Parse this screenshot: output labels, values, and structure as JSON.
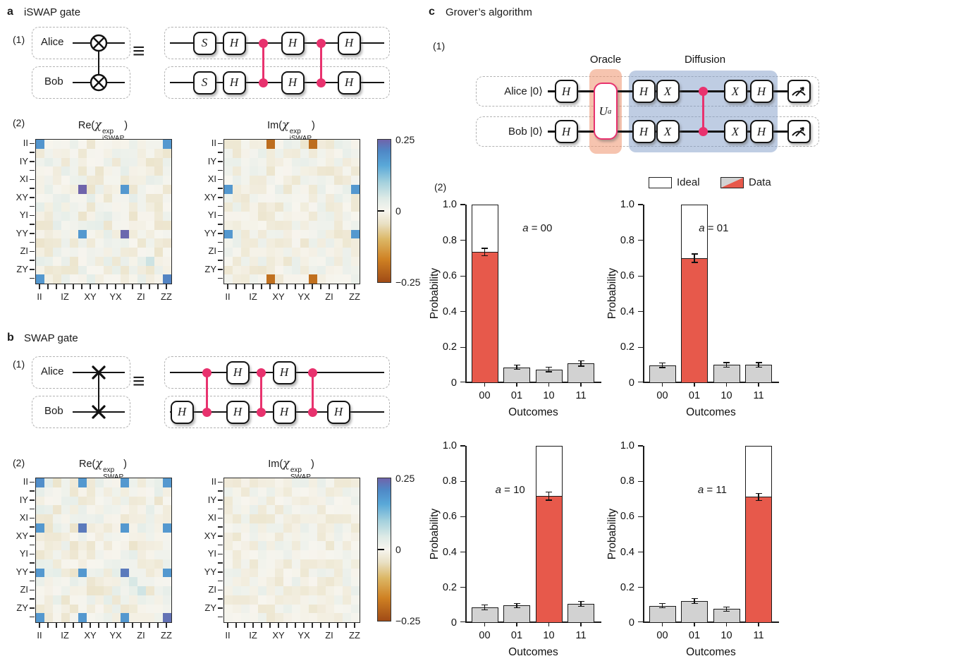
{
  "palette": {
    "pink": "#e8326e",
    "red_bar": "#e7594b",
    "gray_bar": "#d2d2d2",
    "ideal_fill": "#ffffff",
    "oracle_fill": "rgba(238,148,110,0.55)",
    "diffusion_fill": "rgba(128,155,200,0.5)",
    "axis": "#1a1a1a"
  },
  "panel_a": {
    "letter": "a",
    "title": "iSWAP gate",
    "sub1": "(1)",
    "sub2": "(2)",
    "alice": "Alice",
    "bob": "Bob",
    "equiv": "≡",
    "left_symbol": "cross-circle",
    "right_circuit": {
      "top": [
        "S",
        "H",
        "dot",
        "H",
        "dot",
        "H"
      ],
      "bottom": [
        "S",
        "H",
        "dot",
        "H",
        "dot",
        "H"
      ]
    }
  },
  "panel_b": {
    "letter": "b",
    "title": "SWAP gate",
    "sub1": "(1)",
    "sub2": "(2)",
    "alice": "Alice",
    "bob": "Bob",
    "equiv": "≡",
    "left_symbol": "cross",
    "right_circuit": {
      "top": [
        "",
        "dot",
        "H",
        "dot",
        "H",
        "dot",
        ""
      ],
      "bottom": [
        "H",
        "dot",
        "H",
        "dot",
        "H",
        "dot",
        "H"
      ]
    }
  },
  "panel_c": {
    "letter": "c",
    "title": "Grover’s algorithm",
    "sub1": "(1)",
    "sub2": "(2)",
    "alice": "Alice",
    "bob": "Bob",
    "ket": "|0⟩",
    "oracle_label": "Oracle",
    "diffusion_label": "Diffusion",
    "gate_before": "H",
    "oracle_gate": {
      "letter": "U",
      "sub": "a"
    },
    "gates_after": [
      "H",
      "X",
      "dot",
      "X",
      "H"
    ],
    "measure": "meter-icon"
  },
  "colorbar": {
    "label_max": "0.25",
    "label_mid": "0",
    "label_min": "−0.25",
    "stops": [
      {
        "v": -0.25,
        "c": "#a04b16"
      },
      {
        "v": -0.17,
        "c": "#cf8123"
      },
      {
        "v": -0.1,
        "c": "#dcb765"
      },
      {
        "v": -0.045,
        "c": "#e9e0c4"
      },
      {
        "v": 0.0,
        "c": "#f7f5ee"
      },
      {
        "v": 0.045,
        "c": "#ddeae6"
      },
      {
        "v": 0.1,
        "c": "#a5d1dd"
      },
      {
        "v": 0.16,
        "c": "#59a8d8"
      },
      {
        "v": 0.21,
        "c": "#4f88c6"
      },
      {
        "v": 0.25,
        "c": "#6f64ab"
      }
    ]
  },
  "chart_data": [
    {
      "type": "heatmap",
      "id": "iswap_re",
      "title": {
        "func": "Re(",
        "chi": "χ",
        "sup": "exp",
        "sub": "iSWAP",
        "close": ")"
      },
      "rows": 16,
      "cols": 16,
      "scale": [
        -0.25,
        0.25
      ],
      "ytick_labels": [
        "II",
        "IY",
        "XI",
        "XY",
        "YI",
        "YY",
        "ZI",
        "ZY"
      ],
      "xtick_labels": [
        "II",
        "IZ",
        "XY",
        "YX",
        "ZI",
        "ZZ"
      ],
      "strong_cells": [
        [
          0,
          0,
          0.19
        ],
        [
          0,
          15,
          0.185
        ],
        [
          15,
          0,
          0.185
        ],
        [
          15,
          15,
          0.215
        ],
        [
          5,
          5,
          0.25
        ],
        [
          5,
          10,
          0.185
        ],
        [
          10,
          5,
          0.185
        ],
        [
          10,
          10,
          0.245
        ]
      ],
      "diagonal_tint": 0.03,
      "noise_amp": 0.034,
      "seed": 11
    },
    {
      "type": "heatmap",
      "id": "iswap_im",
      "title": {
        "func": "Im(",
        "chi": "χ",
        "sup": "exp",
        "sub": "iSWAP",
        "close": ")"
      },
      "rows": 16,
      "cols": 16,
      "scale": [
        -0.25,
        0.25
      ],
      "ytick_labels": [
        "II",
        "IY",
        "XI",
        "XY",
        "YI",
        "YY",
        "ZI",
        "ZY"
      ],
      "xtick_labels": [
        "II",
        "IZ",
        "XY",
        "YX",
        "ZI",
        "ZZ"
      ],
      "strong_cells": [
        [
          0,
          5,
          -0.2
        ],
        [
          0,
          10,
          -0.2
        ],
        [
          15,
          5,
          -0.195
        ],
        [
          15,
          10,
          -0.195
        ],
        [
          5,
          0,
          0.185
        ],
        [
          10,
          0,
          0.185
        ],
        [
          5,
          15,
          0.185
        ],
        [
          10,
          15,
          0.185
        ]
      ],
      "diagonal_tint": 0,
      "noise_amp": 0.03,
      "seed": 23
    },
    {
      "type": "heatmap",
      "id": "swap_re",
      "title": {
        "func": "Re(",
        "chi": "χ",
        "sup": "exp",
        "sub": "SWAP",
        "close": ")"
      },
      "rows": 16,
      "cols": 16,
      "scale": [
        -0.25,
        0.25
      ],
      "ytick_labels": [
        "II",
        "IY",
        "XI",
        "XY",
        "YI",
        "YY",
        "ZI",
        "ZY"
      ],
      "xtick_labels": [
        "II",
        "IZ",
        "XY",
        "YX",
        "ZI",
        "ZZ"
      ],
      "strong_cells": [
        [
          0,
          0,
          0.2
        ],
        [
          0,
          5,
          0.185
        ],
        [
          0,
          10,
          0.185
        ],
        [
          0,
          15,
          0.185
        ],
        [
          5,
          0,
          0.185
        ],
        [
          5,
          5,
          0.225
        ],
        [
          5,
          10,
          0.185
        ],
        [
          5,
          15,
          0.185
        ],
        [
          10,
          0,
          0.185
        ],
        [
          10,
          5,
          0.185
        ],
        [
          10,
          10,
          0.225
        ],
        [
          10,
          15,
          0.185
        ],
        [
          15,
          0,
          0.185
        ],
        [
          15,
          5,
          0.185
        ],
        [
          15,
          10,
          0.185
        ],
        [
          15,
          15,
          0.235
        ]
      ],
      "diagonal_tint": 0.032,
      "noise_amp": 0.034,
      "seed": 37
    },
    {
      "type": "heatmap",
      "id": "swap_im",
      "title": {
        "func": "Im(",
        "chi": "χ",
        "sup": "exp",
        "sub": "SWAP",
        "close": ")"
      },
      "rows": 16,
      "cols": 16,
      "scale": [
        -0.25,
        0.25
      ],
      "ytick_labels": [
        "II",
        "IY",
        "XI",
        "XY",
        "YI",
        "YY",
        "ZI",
        "ZY"
      ],
      "xtick_labels": [
        "II",
        "IZ",
        "XY",
        "YX",
        "ZI",
        "ZZ"
      ],
      "strong_cells": [],
      "diagonal_tint": 0,
      "noise_amp": 0.028,
      "seed": 51
    },
    {
      "type": "bar",
      "categories": [
        "00",
        "01",
        "10",
        "11"
      ],
      "ylabel": "Probability",
      "xlabel": "Outcomes",
      "ylim": [
        0,
        1
      ],
      "yticks": [
        0,
        0.2,
        0.4,
        0.6,
        0.8,
        1.0
      ],
      "ytick_labels": [
        "0",
        "0.2",
        "0.4",
        "0.6",
        "0.8",
        "1.0"
      ],
      "legend": {
        "ideal": "Ideal",
        "data": "Data"
      },
      "charts": [
        {
          "annotation": {
            "var": "a",
            "rest": " = 00"
          },
          "target": 0,
          "ideal": [
            1,
            0,
            0,
            0
          ],
          "values": [
            0.735,
            0.088,
            0.076,
            0.11
          ],
          "errors": [
            0.02,
            0.012,
            0.012,
            0.015
          ]
        },
        {
          "annotation": {
            "var": "a",
            "rest": " = 01"
          },
          "target": 1,
          "ideal": [
            0,
            1,
            0,
            0
          ],
          "values": [
            0.1,
            0.7,
            0.102,
            0.102
          ],
          "errors": [
            0.013,
            0.024,
            0.013,
            0.013
          ]
        },
        {
          "annotation": {
            "var": "a",
            "rest": " = 10"
          },
          "target": 2,
          "ideal": [
            0,
            0,
            1,
            0
          ],
          "values": [
            0.088,
            0.098,
            0.716,
            0.108
          ],
          "errors": [
            0.013,
            0.012,
            0.022,
            0.013
          ]
        },
        {
          "annotation": {
            "var": "a",
            "rest": " = 11"
          },
          "target": 3,
          "ideal": [
            0,
            0,
            0,
            1
          ],
          "values": [
            0.097,
            0.123,
            0.078,
            0.712
          ],
          "errors": [
            0.012,
            0.014,
            0.012,
            0.02
          ]
        }
      ]
    }
  ]
}
